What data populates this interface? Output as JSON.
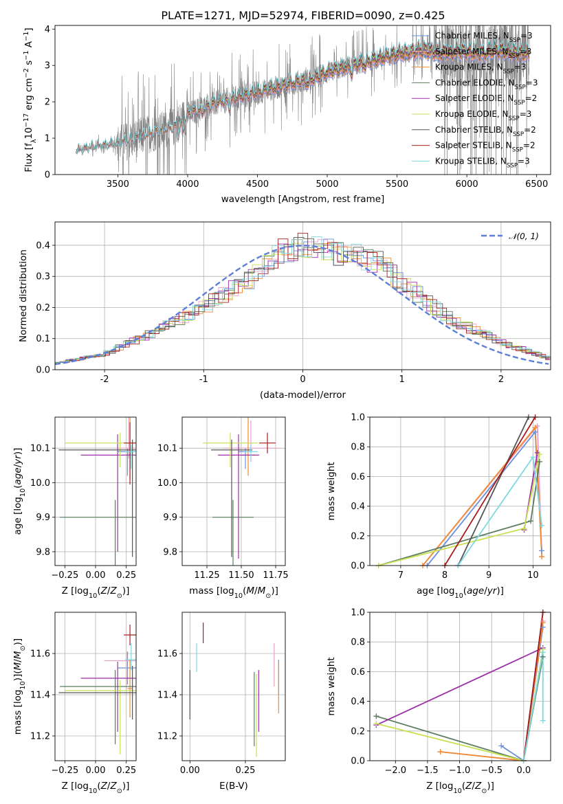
{
  "title": "PLATE=1271, MJD=52974, FIBERID=0090, z=0.425",
  "colors": {
    "Chabrier MILES": "#6a8fdc",
    "Salpeter MILES": "#e8a1c8",
    "Kroupa MILES": "#f08a30",
    "Chabrier ELODIE": "#5b7c5e",
    "Salpeter ELODIE": "#9c2ea8",
    "Kroupa ELODIE": "#c8e050",
    "Chabrier STELIB": "#555555",
    "Salpeter STELIB": "#a81c1c",
    "Kroupa STELIB": "#7ed8e0",
    "data": "#808080",
    "normal": "#5b7fd8"
  },
  "chart_data": [
    {
      "id": "spectrum",
      "type": "line",
      "xlabel": "wavelength [Angstrom, rest frame]",
      "ylabel": "Flux [f",
      "ylabel_sub": "λ",
      "ylabel_mid": "10",
      "ylabel_sup1": "−17",
      "ylabel_mid2": " erg cm",
      "ylabel_sup2": "−2",
      "ylabel_mid3": " s",
      "ylabel_sup3": "−1",
      "ylabel_end": " A",
      "ylabel_sup4": "−1",
      "ylabel_close": "]",
      "xlim": [
        3050,
        6600
      ],
      "ylim": [
        0,
        4.1
      ],
      "xticks": [
        3500,
        4000,
        4500,
        5000,
        5500,
        6000,
        6500
      ],
      "yticks": [
        0,
        1,
        2,
        3,
        4
      ],
      "grid": false,
      "legend_placement": "upper-right",
      "legend": [
        {
          "label": "Chabrier MILES, N",
          "sub": "SSP",
          "tail": "=3",
          "key": "Chabrier MILES"
        },
        {
          "label": "Salpeter MILES, N",
          "sub": "SSP",
          "tail": "=3",
          "key": "Salpeter MILES"
        },
        {
          "label": "Kroupa MILES, N",
          "sub": "SSP",
          "tail": "=3",
          "key": "Kroupa MILES"
        },
        {
          "label": "Chabrier ELODIE, N",
          "sub": "SSP",
          "tail": "=3",
          "key": "Chabrier ELODIE"
        },
        {
          "label": "Salpeter ELODIE, N",
          "sub": "SSP",
          "tail": "=2",
          "key": "Salpeter ELODIE"
        },
        {
          "label": "Kroupa ELODIE, N",
          "sub": "SSP",
          "tail": "=3",
          "key": "Kroupa ELODIE"
        },
        {
          "label": "Chabrier STELIB, N",
          "sub": "SSP",
          "tail": "=2",
          "key": "Chabrier STELIB"
        },
        {
          "label": "Salpeter STELIB, N",
          "sub": "SSP",
          "tail": "=2",
          "key": "Salpeter STELIB"
        },
        {
          "label": "Kroupa STELIB, N",
          "sub": "SSP",
          "tail": "=3",
          "key": "Kroupa STELIB"
        }
      ],
      "model_continuum": {
        "x": [
          3200,
          3300,
          3400,
          3500,
          3600,
          3700,
          3800,
          3900,
          4000,
          4100,
          4200,
          4300,
          4400,
          4500,
          4600,
          4700,
          4800,
          4900,
          5000,
          5100,
          5200,
          5300,
          5400,
          5500,
          5600,
          5700,
          5800,
          5900,
          6000,
          6100,
          6200,
          6300,
          6400,
          6450
        ],
        "y": [
          0.65,
          0.75,
          0.8,
          0.85,
          0.95,
          1.1,
          1.2,
          1.3,
          1.65,
          1.8,
          1.95,
          2.05,
          2.15,
          2.25,
          2.35,
          2.45,
          2.55,
          2.62,
          2.8,
          2.9,
          3.0,
          3.1,
          3.2,
          3.3,
          3.35,
          3.4,
          3.3,
          3.4,
          3.35,
          3.3,
          3.4,
          3.35,
          3.3,
          3.3
        ]
      }
    },
    {
      "id": "residuals",
      "type": "area",
      "xlabel": "(data-model)/error",
      "ylabel": "Normed distribution",
      "xlim": [
        -2.5,
        2.5
      ],
      "ylim": [
        0,
        0.475
      ],
      "xticks": [
        -2,
        -1,
        0,
        1,
        2
      ],
      "yticks": [
        0.0,
        0.1,
        0.2,
        0.3,
        0.4
      ],
      "grid": true,
      "legend_placement": "upper-right",
      "legend": [
        {
          "label": "𝒩(0, 1)",
          "key": "normal"
        }
      ],
      "hist_bin_width": 0.1,
      "hist_envelope": {
        "x": [
          -2.5,
          -2.0,
          -1.5,
          -1.0,
          -0.5,
          -0.2,
          0.0,
          0.3,
          0.6,
          0.8,
          1.0,
          1.5,
          2.0,
          2.5
        ],
        "y": [
          0.02,
          0.05,
          0.12,
          0.2,
          0.3,
          0.38,
          0.4,
          0.38,
          0.36,
          0.34,
          0.28,
          0.16,
          0.09,
          0.035
        ]
      }
    },
    {
      "id": "age-vs-Z",
      "type": "scatter",
      "xlabel": "Z [log",
      "xlabel_sub": "10",
      "xlabel_tail": "(Z/Z",
      "xlabel_sub2": "⊙",
      "xlabel_end": ")]",
      "ylabel": "age  [log",
      "ylabel_sub": "10",
      "ylabel_tail": "(age/yr)]",
      "xlim": [
        -0.33,
        0.33
      ],
      "ylim": [
        9.76,
        10.19
      ],
      "xticks": [
        -0.25,
        0.0,
        0.25
      ],
      "xtick_labels": [
        "−0.25",
        "0.00",
        "0.25"
      ],
      "yticks": [
        9.8,
        9.9,
        10.0,
        10.1
      ],
      "grid": true,
      "points": [
        {
          "key": "Chabrier MILES",
          "x": 0.26,
          "y": 10.09,
          "xerr": 0.08,
          "yerr": [
            0.07,
            0.01
          ]
        },
        {
          "key": "Salpeter MILES",
          "x": 0.27,
          "y": 10.1,
          "xerr": 0.1,
          "yerr": [
            0.03,
            0.11
          ]
        },
        {
          "key": "Kroupa MILES",
          "x": 0.28,
          "y": 10.09,
          "xerr": 0.02,
          "yerr": [
            0.08,
            0.24
          ]
        },
        {
          "key": "Chabrier ELODIE",
          "x": 0.16,
          "y": 9.9,
          "xerr": 0.45,
          "yerr": [
            0.25,
            0.05
          ]
        },
        {
          "key": "Salpeter ELODIE",
          "x": 0.18,
          "y": 10.08,
          "xerr": 0.3,
          "yerr": [
            0.28,
            0.06
          ]
        },
        {
          "key": "Kroupa ELODIE",
          "x": 0.2,
          "y": 10.115,
          "xerr": 0.45,
          "yerr": [
            0.07,
            0.03
          ]
        },
        {
          "key": "Chabrier STELIB",
          "x": 0.3,
          "y": 10.095,
          "xerr": 0.6,
          "yerr": [
            0.31,
            0.03
          ]
        },
        {
          "key": "Salpeter STELIB",
          "x": 0.28,
          "y": 10.115,
          "xerr": 0.05,
          "yerr": [
            0.12,
            0.06
          ]
        },
        {
          "key": "Kroupa STELIB",
          "x": 0.29,
          "y": 10.09,
          "xerr": 0.05,
          "yerr": [
            0.05,
            0.02
          ]
        }
      ]
    },
    {
      "id": "age-vs-mass",
      "type": "scatter",
      "xlabel": "mass [log",
      "xlabel_sub": "10",
      "xlabel_tail": "(M/M",
      "xlabel_sub2": "⊙",
      "xlabel_end": ")]",
      "xlim": [
        11.07,
        11.82
      ],
      "ylim": [
        9.76,
        10.19
      ],
      "xticks": [
        11.25,
        11.5,
        11.75
      ],
      "xtick_labels": [
        "11.25",
        "11.50",
        "11.75"
      ],
      "yticks": [
        9.8,
        9.9,
        10.0,
        10.1
      ],
      "grid": true,
      "points": [
        {
          "key": "Chabrier MILES",
          "x": 11.53,
          "y": 10.09,
          "xerr": 0.05,
          "yerr": [
            0.05,
            0.01
          ]
        },
        {
          "key": "Salpeter MILES",
          "x": 11.57,
          "y": 10.1,
          "xerr": 0.2,
          "yerr": [
            0.04,
            0.08
          ]
        },
        {
          "key": "Kroupa MILES",
          "x": 11.55,
          "y": 10.08,
          "xerr": 0.05,
          "yerr": [
            0.06,
            0.24
          ]
        },
        {
          "key": "Chabrier ELODIE",
          "x": 11.44,
          "y": 9.9,
          "xerr": 0.15,
          "yerr": [
            0.26,
            0.05
          ]
        },
        {
          "key": "Salpeter ELODIE",
          "x": 11.48,
          "y": 10.08,
          "xerr": 0.15,
          "yerr": [
            0.3,
            0.06
          ]
        },
        {
          "key": "Kroupa ELODIE",
          "x": 11.42,
          "y": 10.115,
          "xerr": 0.2,
          "yerr": [
            0.07,
            0.03
          ]
        },
        {
          "key": "Chabrier STELIB",
          "x": 11.43,
          "y": 10.095,
          "xerr": 0.15,
          "yerr": [
            0.31,
            0.03
          ]
        },
        {
          "key": "Salpeter STELIB",
          "x": 11.69,
          "y": 10.115,
          "xerr": 0.06,
          "yerr": [
            0.03,
            0.03
          ]
        },
        {
          "key": "Kroupa STELIB",
          "x": 11.57,
          "y": 10.09,
          "xerr": 0.05,
          "yerr": [
            0.02,
            0.02
          ]
        }
      ]
    },
    {
      "id": "mass-weight-vs-age",
      "type": "line",
      "xlabel": "age  [log",
      "xlabel_sub": "10",
      "xlabel_tail": "(age/yr)]",
      "ylabel": "mass weight",
      "xlim": [
        6.3,
        10.4
      ],
      "ylim": [
        0,
        1
      ],
      "xticks": [
        7,
        8,
        9,
        10
      ],
      "yticks": [
        0.0,
        0.2,
        0.4,
        0.6,
        0.8,
        1.0
      ],
      "grid": true,
      "series": [
        {
          "key": "Chabrier MILES",
          "x": [
            7.6,
            10.05,
            10.2
          ],
          "y": [
            0.0,
            0.9,
            0.1
          ]
        },
        {
          "key": "Salpeter MILES",
          "x": [
            7.5,
            10.1,
            10.2
          ],
          "y": [
            0.0,
            0.94,
            0.06
          ]
        },
        {
          "key": "Kroupa MILES",
          "x": [
            7.5,
            10.05,
            10.2
          ],
          "y": [
            0.0,
            0.93,
            0.06
          ]
        },
        {
          "key": "Chabrier ELODIE",
          "x": [
            6.5,
            9.95,
            10.15
          ],
          "y": [
            0.0,
            0.3,
            0.7
          ]
        },
        {
          "key": "Salpeter ELODIE",
          "x": [
            9.8,
            10.1
          ],
          "y": [
            0.24,
            0.76
          ]
        },
        {
          "key": "Kroupa ELODIE",
          "x": [
            6.5,
            9.8,
            10.15
          ],
          "y": [
            0.0,
            0.25,
            0.75
          ]
        },
        {
          "key": "Chabrier STELIB",
          "x": [
            8.3,
            9.9
          ],
          "y": [
            0.0,
            1.0
          ]
        },
        {
          "key": "Salpeter STELIB",
          "x": [
            8.0,
            10.05
          ],
          "y": [
            0.0,
            1.0
          ]
        },
        {
          "key": "Kroupa STELIB",
          "x": [
            8.3,
            10.0,
            10.2
          ],
          "y": [
            0.0,
            0.73,
            0.27
          ]
        }
      ]
    },
    {
      "id": "mass-vs-Z",
      "type": "scatter",
      "xlabel": "Z [log",
      "xlabel_sub": "10",
      "xlabel_tail": "(Z/Z",
      "xlabel_sub2": "⊙",
      "xlabel_end": ")]",
      "ylabel": "mass [log",
      "ylabel_sub": "10",
      "ylabel_tail": "(M/M",
      "ylabel_sub2": "⊙",
      "ylabel_end": ")]",
      "xlim": [
        -0.33,
        0.33
      ],
      "ylim": [
        11.08,
        11.8
      ],
      "xticks": [
        -0.25,
        0.0,
        0.25
      ],
      "xtick_labels": [
        "−0.25",
        "0.00",
        "0.25"
      ],
      "yticks": [
        11.2,
        11.4,
        11.6
      ],
      "grid": true,
      "points": [
        {
          "key": "Chabrier MILES",
          "x": 0.26,
          "y": 11.53,
          "xerr": 0.08,
          "yerr": [
            0.08,
            0.08
          ]
        },
        {
          "key": "Salpeter MILES",
          "x": 0.25,
          "y": 11.565,
          "xerr": 0.18,
          "yerr": [
            0.14,
            0.04
          ]
        },
        {
          "key": "Kroupa MILES",
          "x": 0.28,
          "y": 11.43,
          "xerr": 0.02,
          "yerr": [
            0.14,
            0.14
          ]
        },
        {
          "key": "Chabrier ELODIE",
          "x": 0.16,
          "y": 11.44,
          "xerr": 0.45,
          "yerr": [
            0.28,
            0.08
          ]
        },
        {
          "key": "Salpeter ELODIE",
          "x": 0.18,
          "y": 11.48,
          "xerr": 0.3,
          "yerr": [
            0.26,
            0.08
          ]
        },
        {
          "key": "Kroupa ELODIE",
          "x": 0.2,
          "y": 11.42,
          "xerr": 0.45,
          "yerr": [
            0.31,
            0.05
          ]
        },
        {
          "key": "Chabrier STELIB",
          "x": 0.3,
          "y": 11.41,
          "xerr": 0.6,
          "yerr": [
            0.13,
            0.13
          ]
        },
        {
          "key": "Salpeter STELIB",
          "x": 0.28,
          "y": 11.69,
          "xerr": 0.05,
          "yerr": [
            0.05,
            0.05
          ]
        },
        {
          "key": "Kroupa STELIB",
          "x": 0.29,
          "y": 11.57,
          "xerr": 0.05,
          "yerr": [
            0.05,
            0.08
          ]
        }
      ]
    },
    {
      "id": "mass-vs-ebv",
      "type": "scatter",
      "xlabel": "E(B-V)",
      "xlim": [
        -0.035,
        0.43
      ],
      "ylim": [
        11.08,
        11.8
      ],
      "xticks": [
        0.0,
        0.25
      ],
      "xtick_labels": [
        "0.00",
        "0.25"
      ],
      "yticks": [
        11.2,
        11.4,
        11.6
      ],
      "grid": true,
      "points": [
        {
          "key": "Chabrier MILES",
          "x": 0.4,
          "y": 11.48,
          "yerr": [
            0.08,
            0.09
          ]
        },
        {
          "key": "Salpeter MILES",
          "x": 0.38,
          "y": 11.58,
          "yerr": [
            0.14,
            0.07
          ]
        },
        {
          "key": "Kroupa MILES",
          "x": 0.4,
          "y": 11.43,
          "yerr": [
            0.12,
            0.13
          ]
        },
        {
          "key": "Chabrier ELODIE",
          "x": 0.29,
          "y": 11.33,
          "yerr": [
            0.18,
            0.18
          ]
        },
        {
          "key": "Salpeter ELODIE",
          "x": 0.31,
          "y": 11.37,
          "yerr": [
            0.15,
            0.15
          ]
        },
        {
          "key": "Kroupa ELODIE",
          "x": 0.3,
          "y": 11.3,
          "yerr": [
            0.2,
            0.2
          ]
        },
        {
          "key": "Chabrier STELIB",
          "x": 0.0,
          "y": 11.4,
          "yerr": [
            0.12,
            0.12
          ]
        },
        {
          "key": "Salpeter STELIB",
          "x": 0.06,
          "y": 11.7,
          "yerr": [
            0.05,
            0.05
          ]
        },
        {
          "key": "Kroupa STELIB",
          "x": 0.03,
          "y": 11.58,
          "yerr": [
            0.07,
            0.07
          ]
        }
      ]
    },
    {
      "id": "mass-weight-vs-Z",
      "type": "line",
      "xlabel": "Z [log",
      "xlabel_sub": "10",
      "xlabel_tail": "(Z/Z",
      "xlabel_sub2": "⊙",
      "xlabel_end": ")]",
      "ylabel": "mass weight",
      "xlim": [
        -2.4,
        0.42
      ],
      "ylim": [
        0,
        1
      ],
      "xticks": [
        -2.0,
        -1.5,
        -1.0,
        -0.5,
        0.0
      ],
      "xtick_labels": [
        "−2.0",
        "−1.5",
        "−1.0",
        "−0.5",
        "0.0"
      ],
      "yticks": [
        0.0,
        0.2,
        0.4,
        0.6,
        0.8,
        1.0
      ],
      "grid": true,
      "series": [
        {
          "key": "Chabrier MILES",
          "x": [
            -0.35,
            0.0,
            0.3
          ],
          "y": [
            0.1,
            0.0,
            0.9
          ]
        },
        {
          "key": "Salpeter MILES",
          "x": [
            -1.3,
            0.0,
            0.3
          ],
          "y": [
            0.06,
            0.0,
            0.94
          ]
        },
        {
          "key": "Kroupa MILES",
          "x": [
            -1.3,
            0.0,
            0.3
          ],
          "y": [
            0.06,
            0.0,
            0.93
          ]
        },
        {
          "key": "Chabrier ELODIE",
          "x": [
            -2.3,
            0.0,
            0.3
          ],
          "y": [
            0.3,
            0.0,
            0.7
          ]
        },
        {
          "key": "Salpeter ELODIE",
          "x": [
            -2.3,
            0.3
          ],
          "y": [
            0.24,
            0.76
          ]
        },
        {
          "key": "Kroupa ELODIE",
          "x": [
            -2.3,
            0.0,
            0.3
          ],
          "y": [
            0.25,
            0.0,
            0.75
          ]
        },
        {
          "key": "Chabrier STELIB",
          "x": [
            0.0,
            0.3
          ],
          "y": [
            0.0,
            1.0
          ]
        },
        {
          "key": "Salpeter STELIB",
          "x": [
            0.0,
            0.3
          ],
          "y": [
            0.0,
            1.0
          ]
        },
        {
          "key": "Kroupa STELIB",
          "x": [
            0.0,
            0.3,
            0.3
          ],
          "y": [
            0.0,
            0.73,
            0.27
          ]
        }
      ]
    }
  ]
}
